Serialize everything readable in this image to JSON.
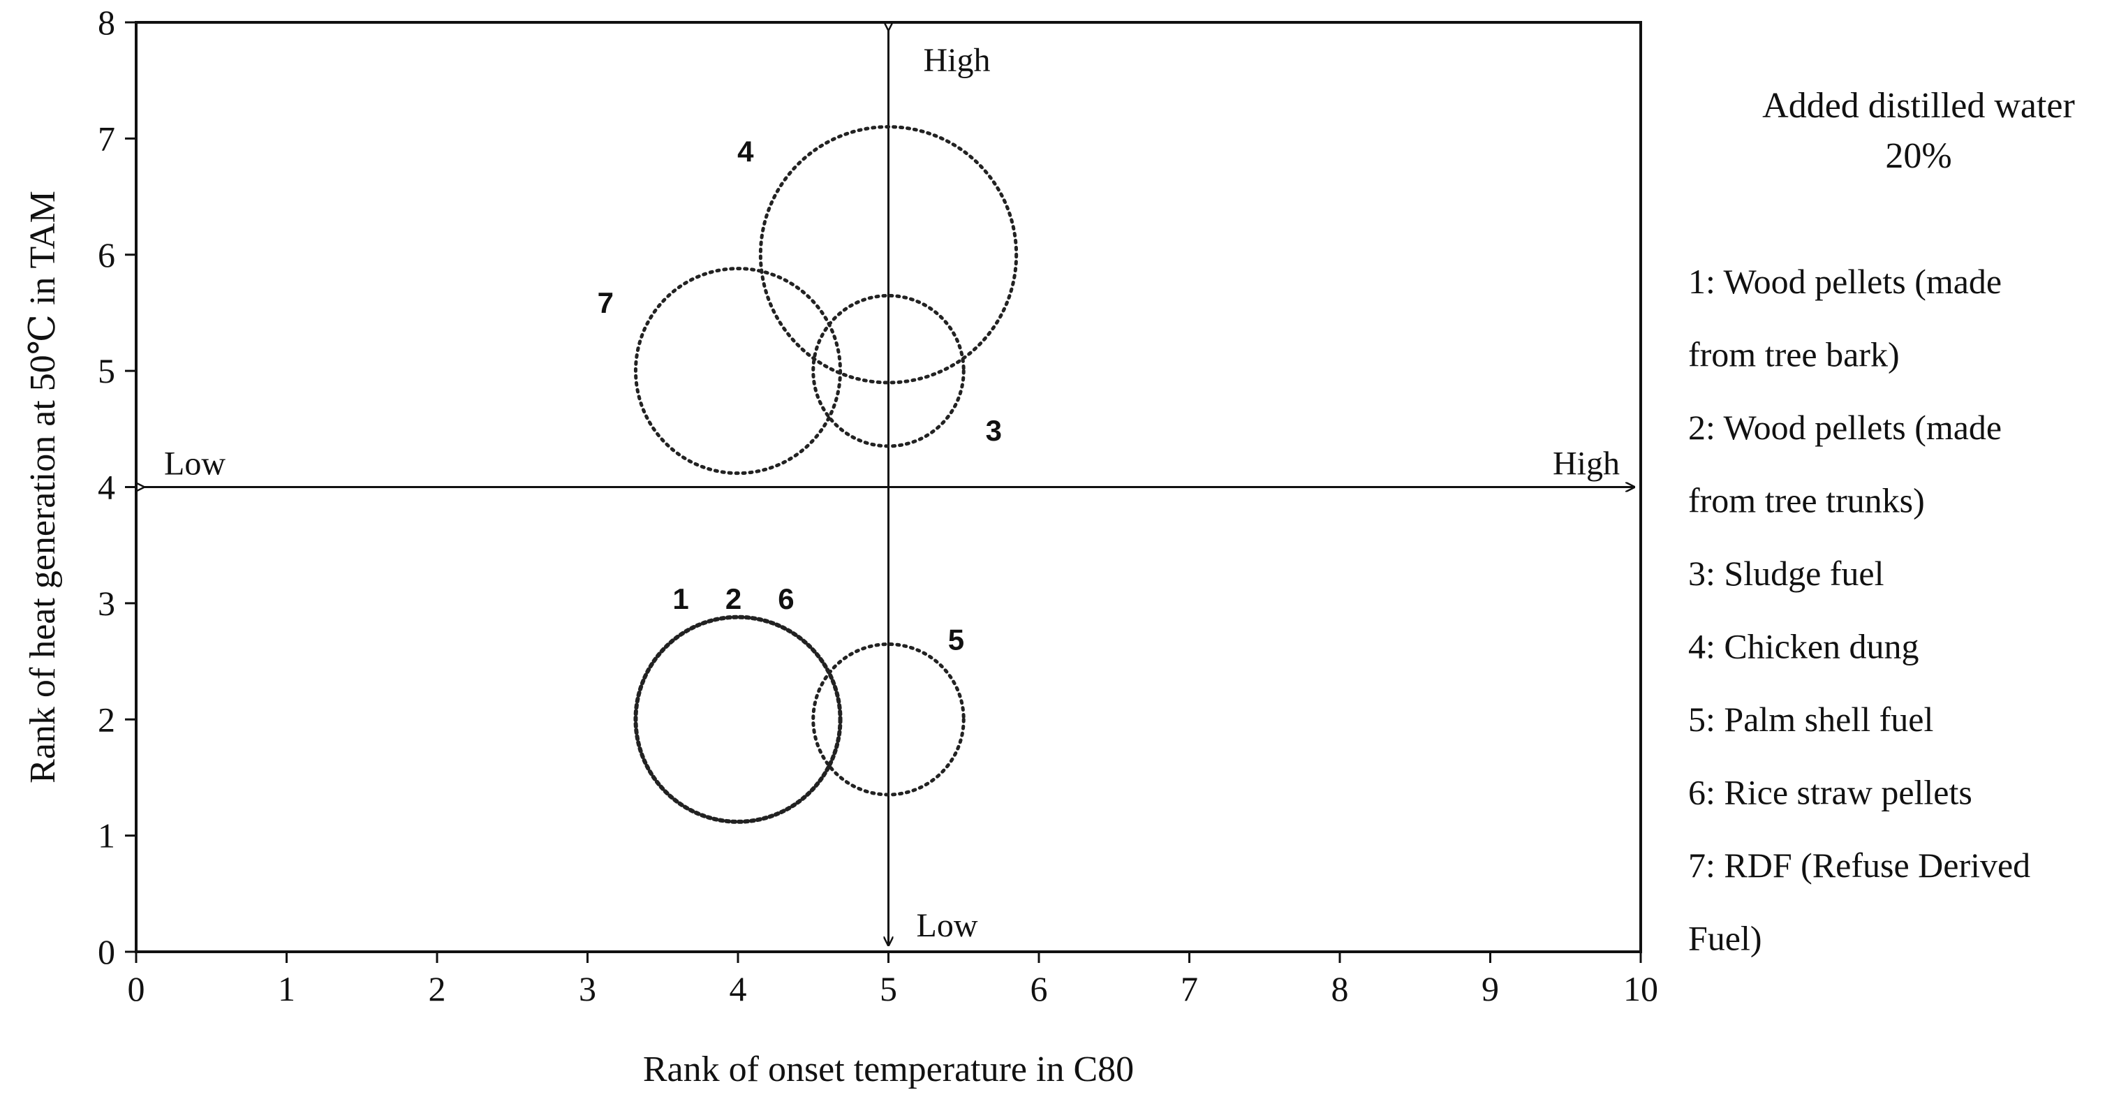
{
  "chart_data": {
    "type": "scatter",
    "title": "",
    "xlabel": "Rank of onset temperature in C80",
    "ylabel": "Rank of heat generation at 50℃ in TAM",
    "xlim": [
      0,
      10
    ],
    "ylim": [
      0,
      8
    ],
    "x_ticks": [
      "0",
      "1",
      "2",
      "3",
      "4",
      "5",
      "6",
      "7",
      "8",
      "9",
      "10"
    ],
    "y_ticks": [
      "0",
      "1",
      "2",
      "3",
      "4",
      "5",
      "6",
      "7",
      "8"
    ],
    "grid": false,
    "crosshair": {
      "x": 5,
      "y": 4
    },
    "quadrant_labels": {
      "x_low": "Low",
      "x_high": "High",
      "y_low": "Low",
      "y_high": "High"
    },
    "circles": [
      {
        "id": "c4",
        "cx": 5,
        "cy": 6,
        "r": 0.85,
        "style": "dotted"
      },
      {
        "id": "c7",
        "cx": 4,
        "cy": 5,
        "r": 0.68,
        "style": "dotted"
      },
      {
        "id": "c3",
        "cx": 5,
        "cy": 5,
        "r": 0.5,
        "style": "dotted"
      },
      {
        "id": "c126",
        "cx": 4,
        "cy": 2,
        "r": 0.68,
        "style": "dotted-bold"
      },
      {
        "id": "c5",
        "cx": 5,
        "cy": 2,
        "r": 0.5,
        "style": "dotted"
      }
    ],
    "point_labels": [
      {
        "text": "4",
        "x": 4.05,
        "y": 6.8
      },
      {
        "text": "7",
        "x": 3.12,
        "y": 5.5
      },
      {
        "text": "3",
        "x": 5.7,
        "y": 4.4
      },
      {
        "text": "1",
        "x": 3.62,
        "y": 2.95
      },
      {
        "text": "2",
        "x": 3.97,
        "y": 2.95
      },
      {
        "text": "6",
        "x": 4.32,
        "y": 2.95
      },
      {
        "text": "5",
        "x": 5.45,
        "y": 2.6
      }
    ],
    "legend": {
      "title_lines": [
        "Added distilled water",
        "20%"
      ],
      "lines": [
        "1: Wood pellets (made",
        "from tree bark)",
        "2: Wood pellets (made",
        "from tree trunks)",
        "3: Sludge fuel",
        "4: Chicken dung",
        "5: Palm shell fuel",
        "6: Rice straw pellets",
        "7: RDF (Refuse Derived",
        "Fuel)"
      ]
    }
  }
}
